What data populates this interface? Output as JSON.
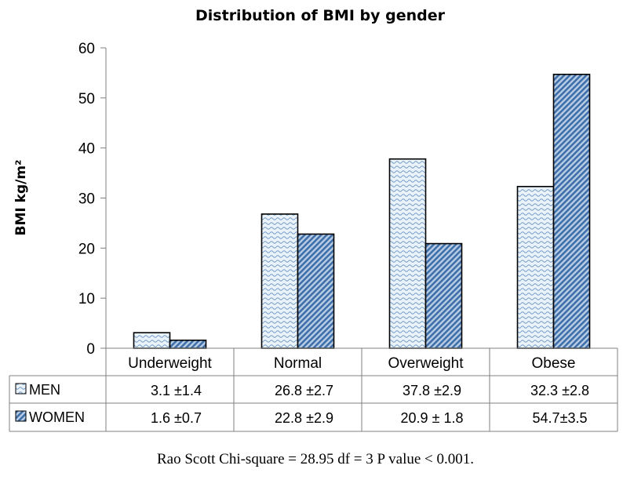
{
  "chart_data": {
    "type": "bar",
    "title": "Distribution of BMI by gender",
    "ylabel": "BMI kg/m²",
    "xlabel": "",
    "ylim": [
      0,
      60
    ],
    "yticks": [
      0,
      10,
      20,
      30,
      40,
      50,
      60
    ],
    "grid": false,
    "legend": "data-table-left",
    "categories": [
      "Underweight",
      "Normal",
      "Overweight",
      "Obese"
    ],
    "series": [
      {
        "name": "MEN",
        "values": [
          3.1,
          26.8,
          37.8,
          32.3
        ],
        "labels": [
          "3.1 ±1.4",
          "26.8 ±2.7",
          "37.8 ±2.9",
          "32.3 ±2.8"
        ],
        "color": "#c9dcef",
        "pattern": "wave"
      },
      {
        "name": "WOMEN",
        "values": [
          1.6,
          22.8,
          20.9,
          54.7
        ],
        "labels": [
          "1.6 ±0.7",
          "22.8 ±2.9",
          "20.9 ± 1.8",
          "54.7±3.5"
        ],
        "color": "#4e7fb8",
        "pattern": "diagonal"
      }
    ],
    "footnote": "Rao Scott Chi-square = 28.95 df = 3 P value < 0.001."
  }
}
